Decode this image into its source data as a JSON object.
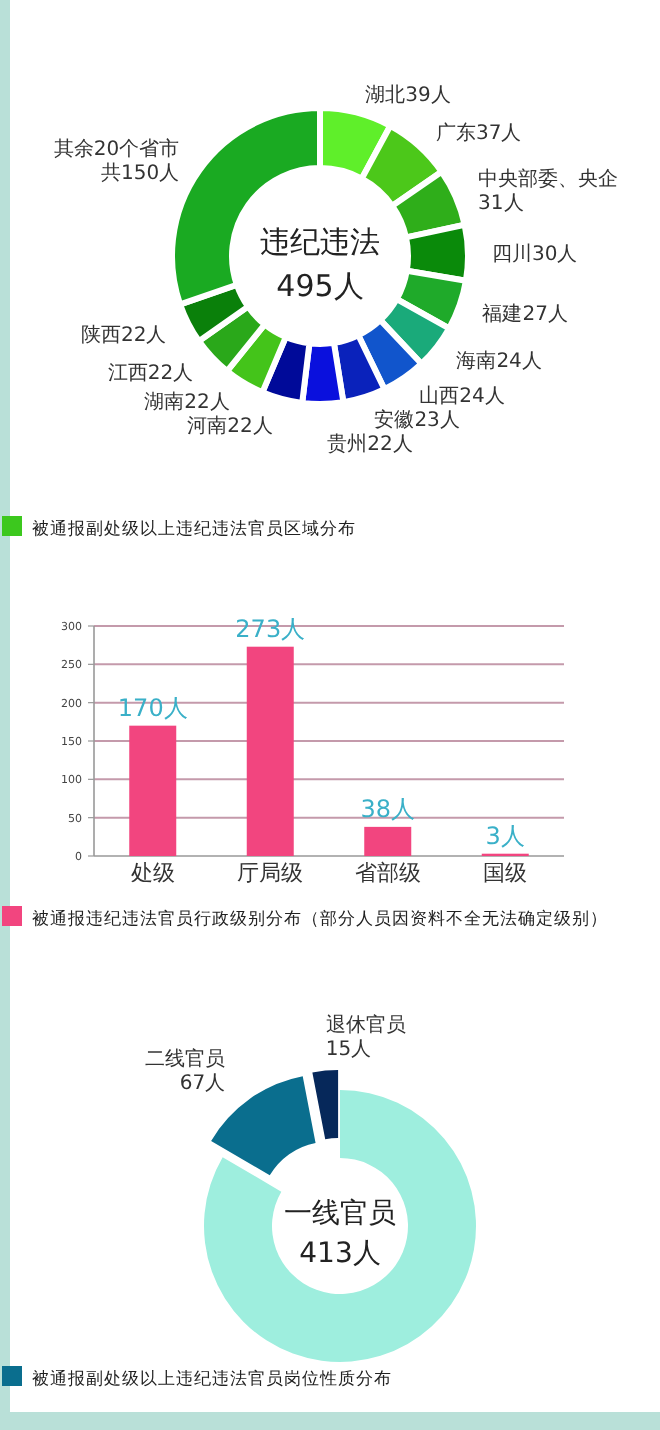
{
  "chart_data": [
    {
      "type": "donut",
      "title": "被通报副处级以上违纪违法官员区域分布",
      "categories": [
        "湖北",
        "广东",
        "中央部委、央企",
        "四川",
        "福建",
        "海南",
        "山西",
        "安徽",
        "贵州",
        "河南",
        "湖南",
        "江西",
        "陕西",
        "其余20个省市"
      ],
      "values": [
        39,
        37,
        31,
        30,
        27,
        24,
        24,
        23,
        22,
        22,
        22,
        22,
        22,
        150
      ],
      "value_labels": [
        "39人",
        "37人",
        "31人",
        "30人",
        "27人",
        "24人",
        "24人",
        "23人",
        "22人",
        "22人",
        "22人",
        "22人",
        "22人",
        "共150人"
      ],
      "colors": [
        "#5fef2a",
        "#4cc81a",
        "#2fae1a",
        "#0a8a0a",
        "#1faa2a",
        "#1aaa7a",
        "#1155cc",
        "#0a22bb",
        "#0a10dd",
        "#000a99",
        "#44c41a",
        "#2aa81a",
        "#0a800a",
        "#1aaa22"
      ],
      "annotations": [
        "违纪违法",
        "495人"
      ]
    },
    {
      "type": "bar",
      "title": "被通报违纪违法官员行政级别分布（部分人员因资料不全无法确定级别）",
      "categories": [
        "处级",
        "厅局级",
        "省部级",
        "国级"
      ],
      "values": [
        170,
        273,
        38,
        3
      ],
      "value_labels": [
        "170人",
        "273人",
        "38人",
        "3人"
      ],
      "color": "#f2457f",
      "ylim": [
        0,
        300
      ],
      "yticks": [
        0,
        50,
        100,
        150,
        200,
        250,
        300
      ],
      "grid": "y"
    },
    {
      "type": "donut",
      "title": "被通报副处级以上违纪违法官员岗位性质分布",
      "categories": [
        "一线官员",
        "二线官员",
        "退休官员"
      ],
      "values": [
        413,
        67,
        15
      ],
      "value_labels": [
        "413人",
        "67人",
        "15人"
      ],
      "colors": [
        "#9eeede",
        "#0a6e8e",
        "#06285a"
      ]
    }
  ]
}
